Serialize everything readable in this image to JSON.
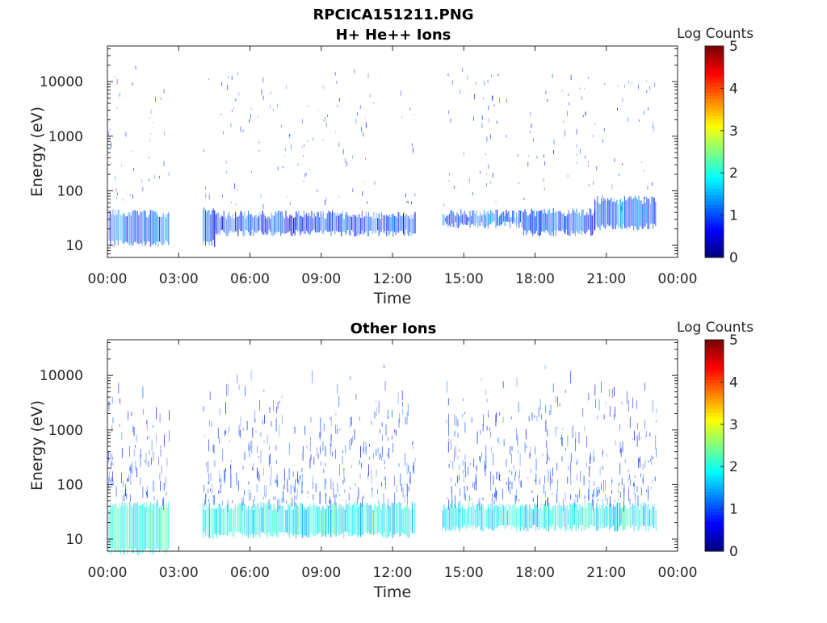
{
  "figure": {
    "title_line1": "RPCICA151211.PNG"
  },
  "chart_data": [
    {
      "type": "heatmap",
      "title": "H+ He++ Ions",
      "xlabel": "Time",
      "ylabel": "Energy (eV)",
      "x_tick_labels": [
        "00:00",
        "03:00",
        "06:00",
        "09:00",
        "12:00",
        "15:00",
        "18:00",
        "21:00",
        "00:00"
      ],
      "x_range_hours": [
        0,
        24
      ],
      "y_scale": "log",
      "y_tick_values": [
        10,
        100,
        1000,
        10000
      ],
      "y_tick_labels": [
        "10",
        "100",
        "1000",
        "10000"
      ],
      "y_range": [
        6,
        45000
      ],
      "colorbar": {
        "label": "Log Counts",
        "ticks": [
          "0",
          "1",
          "2",
          "3",
          "4",
          "5"
        ],
        "range": [
          0,
          5
        ],
        "colormap": "jet"
      },
      "data_gaps_hours": [
        [
          2.6,
          4.0
        ],
        [
          12.95,
          14.1
        ],
        [
          23.1,
          24
        ]
      ],
      "bands": [
        {
          "t0": 0.05,
          "t1": 2.6,
          "e_low": 11,
          "e_high": 40,
          "level": 0.8
        },
        {
          "t0": 4.0,
          "t1": 4.5,
          "e_low": 11,
          "e_high": 45,
          "level": 0.55
        },
        {
          "t0": 4.5,
          "t1": 12.95,
          "e_low": 17,
          "e_high": 38,
          "level": 0.65
        },
        {
          "t0": 14.1,
          "t1": 17.5,
          "e_low": 24,
          "e_high": 40,
          "level": 0.8
        },
        {
          "t0": 17.5,
          "t1": 20.5,
          "e_low": 17,
          "e_high": 42,
          "level": 0.7
        },
        {
          "t0": 20.5,
          "t1": 23.1,
          "e_low": 22,
          "e_high": 70,
          "level": 0.8
        }
      ],
      "sporadic_density": 0.35
    },
    {
      "type": "heatmap",
      "title": "Other Ions",
      "xlabel": "Time",
      "ylabel": "Energy (eV)",
      "x_tick_labels": [
        "00:00",
        "03:00",
        "06:00",
        "09:00",
        "12:00",
        "15:00",
        "18:00",
        "21:00",
        "00:00"
      ],
      "x_range_hours": [
        0,
        24
      ],
      "y_scale": "log",
      "y_tick_values": [
        10,
        100,
        1000,
        10000
      ],
      "y_tick_labels": [
        "10",
        "100",
        "1000",
        "10000"
      ],
      "y_range": [
        6,
        45000
      ],
      "colorbar": {
        "label": "Log Counts",
        "ticks": [
          "0",
          "1",
          "2",
          "3",
          "4",
          "5"
        ],
        "range": [
          0,
          5
        ],
        "colormap": "jet"
      },
      "data_gaps_hours": [
        [
          2.6,
          4.0
        ],
        [
          12.95,
          14.1
        ],
        [
          23.1,
          24
        ]
      ],
      "bands": [
        {
          "t0": 0.05,
          "t1": 2.6,
          "e_low": 6,
          "e_high": 42,
          "level": 1.7
        },
        {
          "t0": 4.0,
          "t1": 12.95,
          "e_low": 12,
          "e_high": 42,
          "level": 1.6
        },
        {
          "t0": 14.1,
          "t1": 23.1,
          "e_low": 16,
          "e_high": 42,
          "level": 1.6
        }
      ],
      "sporadic_density": 1.0
    }
  ]
}
